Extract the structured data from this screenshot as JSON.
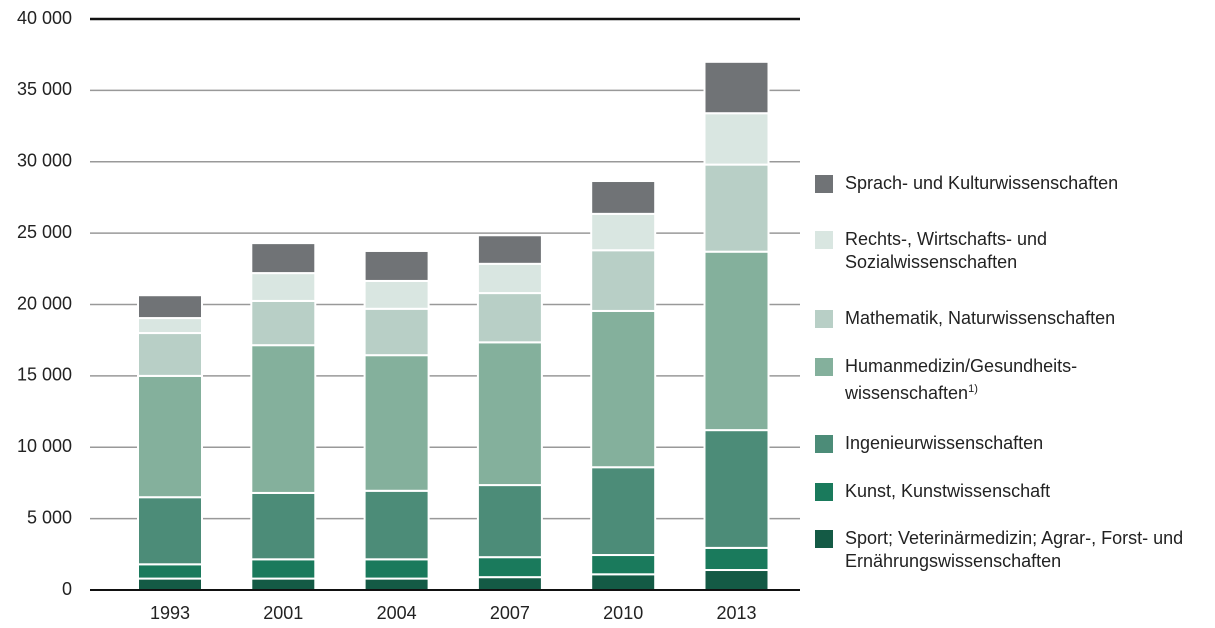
{
  "chart_data": {
    "type": "stacked_bar",
    "categories": [
      "1993",
      "2001",
      "2004",
      "2007",
      "2010",
      "2013"
    ],
    "series": [
      {
        "name": "Sport; Veterinärmedizin; Agrar-, Forst- und Ernährungswissenschaften",
        "color": "#145a45",
        "values": [
          800,
          800,
          800,
          900,
          1100,
          1400
        ]
      },
      {
        "name": "Kunst, Kunstwissenschaft",
        "color": "#1a7a5c",
        "values": [
          1000,
          1350,
          1350,
          1400,
          1350,
          1550
        ]
      },
      {
        "name": "Ingenieurwissenschaften",
        "color": "#4c8c78",
        "values": [
          4700,
          4650,
          4800,
          5050,
          6150,
          8250
        ]
      },
      {
        "name": "Humanmedizin/Gesundheits-wissenschaften",
        "note": "1)",
        "color": "#84b09c",
        "values": [
          8500,
          10350,
          9500,
          10000,
          10950,
          12500
        ]
      },
      {
        "name": "Mathematik, Naturwissenschaften",
        "color": "#b8cfc6",
        "values": [
          3000,
          3100,
          3250,
          3450,
          4250,
          6100
        ]
      },
      {
        "name": "Rechts-, Wirtschafts- und Sozialwissenschaften",
        "color": "#d9e6e1",
        "values": [
          1050,
          1950,
          1950,
          2050,
          2550,
          3600
        ]
      },
      {
        "name": "Sprach- und Kulturwissenschaften",
        "color": "#707376",
        "values": [
          1600,
          2100,
          2100,
          2000,
          2300,
          3600
        ]
      }
    ],
    "ylim": [
      0,
      40000
    ],
    "yticks": [
      0,
      {
        "value": 5000,
        "label": "5 000"
      },
      {
        "value": 10000,
        "label": "10 000"
      },
      {
        "value": 15000,
        "label": "15 000"
      },
      {
        "value": 20000,
        "label": "20 000"
      },
      {
        "value": 25000,
        "label": "25 000"
      },
      {
        "value": 30000,
        "label": "30 000"
      },
      {
        "value": 35000,
        "label": "35 000"
      },
      {
        "value": 40000,
        "label": "40 000"
      }
    ],
    "grid": true,
    "legend": "right"
  }
}
